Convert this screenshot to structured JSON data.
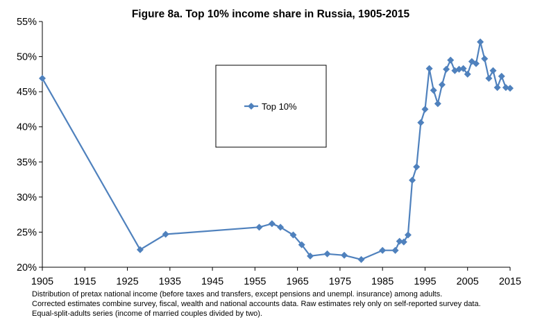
{
  "chart_data": {
    "type": "line",
    "title": "Figure 8a. Top 10% income share in Russia, 1905-2015",
    "xlabel": "",
    "ylabel": "",
    "xlim": [
      1905,
      2015
    ],
    "ylim": [
      20,
      55
    ],
    "x_ticks": [
      "1905",
      "1915",
      "1925",
      "1935",
      "1945",
      "1955",
      "1965",
      "1975",
      "1985",
      "1995",
      "2005",
      "2015"
    ],
    "y_ticks": [
      "20%",
      "25%",
      "30%",
      "35%",
      "40%",
      "45%",
      "50%",
      "55%"
    ],
    "grid": false,
    "legend_placement": "center-left",
    "colors": {
      "series": "#4f81bd"
    },
    "series": [
      {
        "name": "Top 10%",
        "marker": "diamond",
        "points": [
          [
            1905,
            46.9
          ],
          [
            1928,
            22.5
          ],
          [
            1934,
            24.7
          ],
          [
            1956,
            25.7
          ],
          [
            1959,
            26.2
          ],
          [
            1961,
            25.7
          ],
          [
            1964,
            24.6
          ],
          [
            1966,
            23.2
          ],
          [
            1968,
            21.6
          ],
          [
            1972,
            21.9
          ],
          [
            1976,
            21.7
          ],
          [
            1980,
            21.1
          ],
          [
            1985,
            22.4
          ],
          [
            1988,
            22.4
          ],
          [
            1989,
            23.7
          ],
          [
            1990,
            23.6
          ],
          [
            1991,
            24.6
          ],
          [
            1992,
            32.4
          ],
          [
            1993,
            34.3
          ],
          [
            1994,
            40.6
          ],
          [
            1995,
            42.5
          ],
          [
            1996,
            48.3
          ],
          [
            1997,
            45.2
          ],
          [
            1998,
            43.3
          ],
          [
            1999,
            46.0
          ],
          [
            2000,
            48.2
          ],
          [
            2001,
            49.5
          ],
          [
            2002,
            48.0
          ],
          [
            2003,
            48.2
          ],
          [
            2004,
            48.3
          ],
          [
            2005,
            47.5
          ],
          [
            2006,
            49.3
          ],
          [
            2007,
            49.0
          ],
          [
            2008,
            52.1
          ],
          [
            2009,
            49.7
          ],
          [
            2010,
            46.9
          ],
          [
            2011,
            48.0
          ],
          [
            2012,
            45.6
          ],
          [
            2013,
            47.2
          ],
          [
            2014,
            45.6
          ],
          [
            2015,
            45.5
          ]
        ]
      }
    ]
  },
  "notes": [
    "Distribution of pretax national income (before taxes and transfers, except pensions and unempl. insurance) among adults.",
    "Corrected estimates combine survey, fiscal, wealth and national accounts data. Raw estimates rely only on self-reported survey data.",
    "Equal-split-adults series (income of married couples divided by two)."
  ]
}
